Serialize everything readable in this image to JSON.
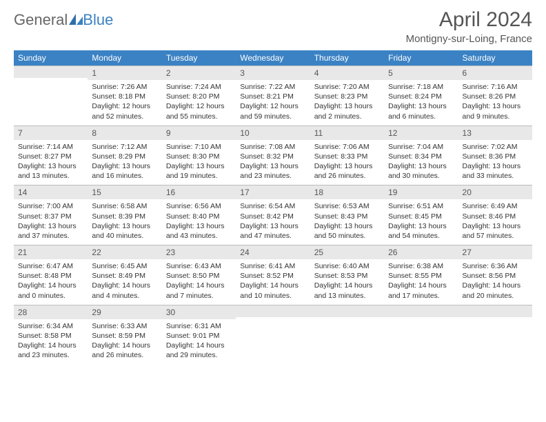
{
  "brand": {
    "part1": "General",
    "part2": "Blue"
  },
  "colors": {
    "header_bg": "#3b82c4",
    "header_text": "#ffffff",
    "daynum_bg": "#e8e8e8",
    "text": "#333333",
    "rule": "#3b6fa0"
  },
  "title": "April 2024",
  "location": "Montigny-sur-Loing, France",
  "day_names": [
    "Sunday",
    "Monday",
    "Tuesday",
    "Wednesday",
    "Thursday",
    "Friday",
    "Saturday"
  ],
  "weeks": [
    [
      {
        "n": "",
        "sr": "",
        "ss": "",
        "dl": ""
      },
      {
        "n": "1",
        "sr": "Sunrise: 7:26 AM",
        "ss": "Sunset: 8:18 PM",
        "dl": "Daylight: 12 hours and 52 minutes."
      },
      {
        "n": "2",
        "sr": "Sunrise: 7:24 AM",
        "ss": "Sunset: 8:20 PM",
        "dl": "Daylight: 12 hours and 55 minutes."
      },
      {
        "n": "3",
        "sr": "Sunrise: 7:22 AM",
        "ss": "Sunset: 8:21 PM",
        "dl": "Daylight: 12 hours and 59 minutes."
      },
      {
        "n": "4",
        "sr": "Sunrise: 7:20 AM",
        "ss": "Sunset: 8:23 PM",
        "dl": "Daylight: 13 hours and 2 minutes."
      },
      {
        "n": "5",
        "sr": "Sunrise: 7:18 AM",
        "ss": "Sunset: 8:24 PM",
        "dl": "Daylight: 13 hours and 6 minutes."
      },
      {
        "n": "6",
        "sr": "Sunrise: 7:16 AM",
        "ss": "Sunset: 8:26 PM",
        "dl": "Daylight: 13 hours and 9 minutes."
      }
    ],
    [
      {
        "n": "7",
        "sr": "Sunrise: 7:14 AM",
        "ss": "Sunset: 8:27 PM",
        "dl": "Daylight: 13 hours and 13 minutes."
      },
      {
        "n": "8",
        "sr": "Sunrise: 7:12 AM",
        "ss": "Sunset: 8:29 PM",
        "dl": "Daylight: 13 hours and 16 minutes."
      },
      {
        "n": "9",
        "sr": "Sunrise: 7:10 AM",
        "ss": "Sunset: 8:30 PM",
        "dl": "Daylight: 13 hours and 19 minutes."
      },
      {
        "n": "10",
        "sr": "Sunrise: 7:08 AM",
        "ss": "Sunset: 8:32 PM",
        "dl": "Daylight: 13 hours and 23 minutes."
      },
      {
        "n": "11",
        "sr": "Sunrise: 7:06 AM",
        "ss": "Sunset: 8:33 PM",
        "dl": "Daylight: 13 hours and 26 minutes."
      },
      {
        "n": "12",
        "sr": "Sunrise: 7:04 AM",
        "ss": "Sunset: 8:34 PM",
        "dl": "Daylight: 13 hours and 30 minutes."
      },
      {
        "n": "13",
        "sr": "Sunrise: 7:02 AM",
        "ss": "Sunset: 8:36 PM",
        "dl": "Daylight: 13 hours and 33 minutes."
      }
    ],
    [
      {
        "n": "14",
        "sr": "Sunrise: 7:00 AM",
        "ss": "Sunset: 8:37 PM",
        "dl": "Daylight: 13 hours and 37 minutes."
      },
      {
        "n": "15",
        "sr": "Sunrise: 6:58 AM",
        "ss": "Sunset: 8:39 PM",
        "dl": "Daylight: 13 hours and 40 minutes."
      },
      {
        "n": "16",
        "sr": "Sunrise: 6:56 AM",
        "ss": "Sunset: 8:40 PM",
        "dl": "Daylight: 13 hours and 43 minutes."
      },
      {
        "n": "17",
        "sr": "Sunrise: 6:54 AM",
        "ss": "Sunset: 8:42 PM",
        "dl": "Daylight: 13 hours and 47 minutes."
      },
      {
        "n": "18",
        "sr": "Sunrise: 6:53 AM",
        "ss": "Sunset: 8:43 PM",
        "dl": "Daylight: 13 hours and 50 minutes."
      },
      {
        "n": "19",
        "sr": "Sunrise: 6:51 AM",
        "ss": "Sunset: 8:45 PM",
        "dl": "Daylight: 13 hours and 54 minutes."
      },
      {
        "n": "20",
        "sr": "Sunrise: 6:49 AM",
        "ss": "Sunset: 8:46 PM",
        "dl": "Daylight: 13 hours and 57 minutes."
      }
    ],
    [
      {
        "n": "21",
        "sr": "Sunrise: 6:47 AM",
        "ss": "Sunset: 8:48 PM",
        "dl": "Daylight: 14 hours and 0 minutes."
      },
      {
        "n": "22",
        "sr": "Sunrise: 6:45 AM",
        "ss": "Sunset: 8:49 PM",
        "dl": "Daylight: 14 hours and 4 minutes."
      },
      {
        "n": "23",
        "sr": "Sunrise: 6:43 AM",
        "ss": "Sunset: 8:50 PM",
        "dl": "Daylight: 14 hours and 7 minutes."
      },
      {
        "n": "24",
        "sr": "Sunrise: 6:41 AM",
        "ss": "Sunset: 8:52 PM",
        "dl": "Daylight: 14 hours and 10 minutes."
      },
      {
        "n": "25",
        "sr": "Sunrise: 6:40 AM",
        "ss": "Sunset: 8:53 PM",
        "dl": "Daylight: 14 hours and 13 minutes."
      },
      {
        "n": "26",
        "sr": "Sunrise: 6:38 AM",
        "ss": "Sunset: 8:55 PM",
        "dl": "Daylight: 14 hours and 17 minutes."
      },
      {
        "n": "27",
        "sr": "Sunrise: 6:36 AM",
        "ss": "Sunset: 8:56 PM",
        "dl": "Daylight: 14 hours and 20 minutes."
      }
    ],
    [
      {
        "n": "28",
        "sr": "Sunrise: 6:34 AM",
        "ss": "Sunset: 8:58 PM",
        "dl": "Daylight: 14 hours and 23 minutes."
      },
      {
        "n": "29",
        "sr": "Sunrise: 6:33 AM",
        "ss": "Sunset: 8:59 PM",
        "dl": "Daylight: 14 hours and 26 minutes."
      },
      {
        "n": "30",
        "sr": "Sunrise: 6:31 AM",
        "ss": "Sunset: 9:01 PM",
        "dl": "Daylight: 14 hours and 29 minutes."
      },
      {
        "n": "",
        "sr": "",
        "ss": "",
        "dl": ""
      },
      {
        "n": "",
        "sr": "",
        "ss": "",
        "dl": ""
      },
      {
        "n": "",
        "sr": "",
        "ss": "",
        "dl": ""
      },
      {
        "n": "",
        "sr": "",
        "ss": "",
        "dl": ""
      }
    ]
  ]
}
